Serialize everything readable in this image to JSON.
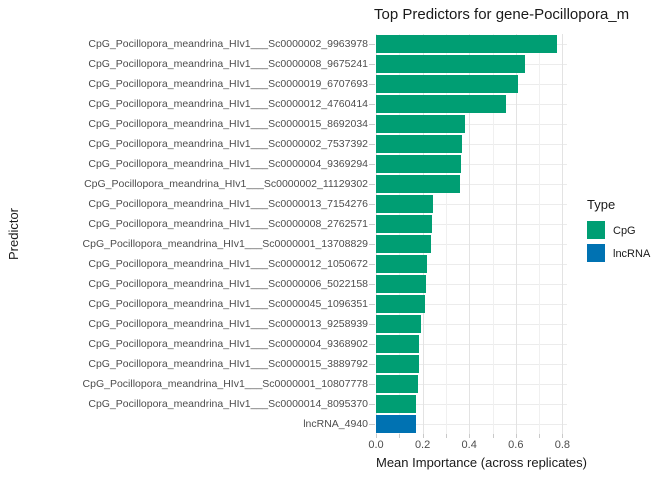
{
  "chart_data": {
    "type": "bar",
    "orientation": "horizontal",
    "title": "Top Predictors for gene-Pocillopora_m",
    "xlabel": "Mean Importance (across replicates)",
    "ylabel": "Predictor",
    "xlim": [
      0,
      0.814
    ],
    "x_major_ticks": [
      0.0,
      0.2,
      0.4,
      0.6,
      0.8
    ],
    "x_tick_labels": [
      "0.0",
      "0.2",
      "0.4",
      "0.6",
      "0.8"
    ],
    "x_minor_step": 0.1,
    "grid": true,
    "legend": {
      "title": "Type",
      "position": "right",
      "items": [
        {
          "label": "CpG",
          "color": "#009E73"
        },
        {
          "label": "lncRNA",
          "color": "#0072B2"
        }
      ]
    },
    "rows": [
      {
        "category": "CpG_Pocillopora_meandrina_HIv1___Sc0000002_9963978",
        "value": 0.775,
        "type": "CpG"
      },
      {
        "category": "CpG_Pocillopora_meandrina_HIv1___Sc0000008_9675241",
        "value": 0.64,
        "type": "CpG"
      },
      {
        "category": "CpG_Pocillopora_meandrina_HIv1___Sc0000019_6707693",
        "value": 0.61,
        "type": "CpG"
      },
      {
        "category": "CpG_Pocillopora_meandrina_HIv1___Sc0000012_4760414",
        "value": 0.56,
        "type": "CpG"
      },
      {
        "category": "CpG_Pocillopora_meandrina_HIv1___Sc0000015_8692034",
        "value": 0.38,
        "type": "CpG"
      },
      {
        "category": "CpG_Pocillopora_meandrina_HIv1___Sc0000002_7537392",
        "value": 0.37,
        "type": "CpG"
      },
      {
        "category": "CpG_Pocillopora_meandrina_HIv1___Sc0000004_9369294",
        "value": 0.365,
        "type": "CpG"
      },
      {
        "category": "CpG_Pocillopora_meandrina_HIv1___Sc0000002_11129302",
        "value": 0.36,
        "type": "CpG"
      },
      {
        "category": "CpG_Pocillopora_meandrina_HIv1___Sc0000013_7154276",
        "value": 0.245,
        "type": "CpG"
      },
      {
        "category": "CpG_Pocillopora_meandrina_HIv1___Sc0000008_2762571",
        "value": 0.24,
        "type": "CpG"
      },
      {
        "category": "CpG_Pocillopora_meandrina_HIv1___Sc0000001_13708829",
        "value": 0.235,
        "type": "CpG"
      },
      {
        "category": "CpG_Pocillopora_meandrina_HIv1___Sc0000012_1050672",
        "value": 0.22,
        "type": "CpG"
      },
      {
        "category": "CpG_Pocillopora_meandrina_HIv1___Sc0000006_5022158",
        "value": 0.215,
        "type": "CpG"
      },
      {
        "category": "CpG_Pocillopora_meandrina_HIv1___Sc0000045_1096351",
        "value": 0.21,
        "type": "CpG"
      },
      {
        "category": "CpG_Pocillopora_meandrina_HIv1___Sc0000013_9258939",
        "value": 0.195,
        "type": "CpG"
      },
      {
        "category": "CpG_Pocillopora_meandrina_HIv1___Sc0000004_9368902",
        "value": 0.185,
        "type": "CpG"
      },
      {
        "category": "CpG_Pocillopora_meandrina_HIv1___Sc0000015_3889792",
        "value": 0.185,
        "type": "CpG"
      },
      {
        "category": "CpG_Pocillopora_meandrina_HIv1___Sc0000001_10807778",
        "value": 0.18,
        "type": "CpG"
      },
      {
        "category": "CpG_Pocillopora_meandrina_HIv1___Sc0000014_8095370",
        "value": 0.17,
        "type": "CpG"
      },
      {
        "category": "lncRNA_4940",
        "value": 0.17,
        "type": "lncRNA"
      }
    ]
  }
}
